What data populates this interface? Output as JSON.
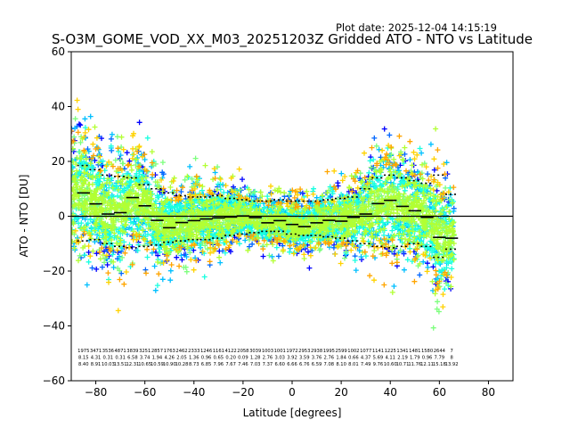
{
  "plot_date": "Plot date: 2025-12-04 14:15:19",
  "chart_data": {
    "type": "scatter",
    "title": "S-O3M_GOME_VOD_XX_M03_20251203Z Gridded ATO - NTO vs Latitude",
    "xlabel": "Latitude [degrees]",
    "ylabel": "ATO - NTO [DU]",
    "xlim": [
      -90,
      90
    ],
    "ylim": [
      -60,
      60
    ],
    "xticks": [
      -80,
      -60,
      -40,
      -20,
      0,
      20,
      40,
      60,
      80
    ],
    "yticks": [
      -60,
      -40,
      -20,
      0,
      20,
      40,
      60
    ],
    "grid": false,
    "zero_line": 0,
    "scatter_colors": [
      "#0000ff",
      "#0066ff",
      "#00bfff",
      "#1affe0",
      "#7dff7d",
      "#b2ff33",
      "#ffd200",
      "#ffa500"
    ],
    "bin_latitudes": [
      -85,
      -80,
      -75,
      -70,
      -65,
      -60,
      -55,
      -50,
      -45,
      -40,
      -35,
      -30,
      -25,
      -20,
      -15,
      -10,
      -5,
      0,
      5,
      10,
      15,
      20,
      25,
      30,
      35,
      40,
      45,
      50,
      55,
      60,
      65
    ],
    "bin_means": [
      8.5,
      4.5,
      0.8,
      1.3,
      6.8,
      3.8,
      -1.5,
      -4.2,
      -2.3,
      -1.6,
      -1.0,
      -0.6,
      -0.3,
      0.1,
      -0.5,
      -2.4,
      -1.6,
      -3.0,
      -3.8,
      -2.4,
      -1.5,
      -1.8,
      -0.4,
      0.8,
      4.6,
      5.8,
      3.6,
      2.0,
      -0.4,
      -7.7,
      -8.0
    ],
    "bin_upper": [
      18.5,
      17.0,
      15.0,
      14.5,
      14.0,
      11.5,
      10.0,
      8.5,
      7.5,
      7.0,
      7.0,
      7.5,
      6.5,
      6.0,
      5.5,
      5.5,
      6.0,
      5.5,
      5.5,
      5.5,
      6.0,
      6.5,
      7.0,
      10.0,
      14.0,
      15.0,
      14.0,
      13.0,
      12.0,
      15.0,
      8.0
    ],
    "bin_lower": [
      -9.0,
      -8.5,
      -10.0,
      -11.0,
      -11.5,
      -11.0,
      -10.5,
      -9.5,
      -9.0,
      -8.5,
      -8.5,
      -8.0,
      -7.0,
      -6.5,
      -6.0,
      -5.5,
      -5.5,
      -6.5,
      -7.0,
      -7.0,
      -7.5,
      -8.0,
      -9.0,
      -10.0,
      -11.0,
      -11.5,
      -11.0,
      -10.0,
      -11.0,
      -15.0,
      -12.0
    ],
    "bin_counts": [
      "1975",
      "3471",
      "3536",
      "4871",
      "3839",
      "3251",
      "2857",
      "1763",
      "2462",
      "2333",
      "1246",
      "1161",
      "4122",
      "2058",
      "3039",
      "1003",
      "1001",
      "1972",
      "2953",
      "2938",
      "1995",
      "2599",
      "1002",
      "1077",
      "1141",
      "1225",
      "1341",
      "1481",
      "1580",
      "2644",
      "7"
    ],
    "bin_stat_mean": [
      "8.15",
      "4.31",
      "0.31",
      "0.31",
      "6.58",
      "3.74",
      "1.94",
      "4.26",
      "2.05",
      "1.36",
      "0.96",
      "0.65",
      "0.20",
      "0.09",
      "1.28",
      "2.76",
      "3.03",
      "3.92",
      "3.59",
      "3.76",
      "2.76",
      "1.84",
      "0.66",
      "4.37",
      "5.69",
      "4.11",
      "2.19",
      "1.79",
      "0.96",
      "7.79",
      "8"
    ],
    "bin_stat_std": [
      "8.40",
      "8.91",
      "10.03",
      "13.51",
      "12.31",
      "10.65",
      "10.59",
      "10.90",
      "10.28",
      "8.73",
      "6.85",
      "7.96",
      "7.67",
      "7.46",
      "7.03",
      "7.37",
      "6.60",
      "6.66",
      "6.76",
      "6.59",
      "7.08",
      "8.10",
      "8.01",
      "7.49",
      "9.76",
      "10.60",
      "10.71",
      "11.76",
      "12.11",
      "15.18",
      "13.92"
    ]
  }
}
